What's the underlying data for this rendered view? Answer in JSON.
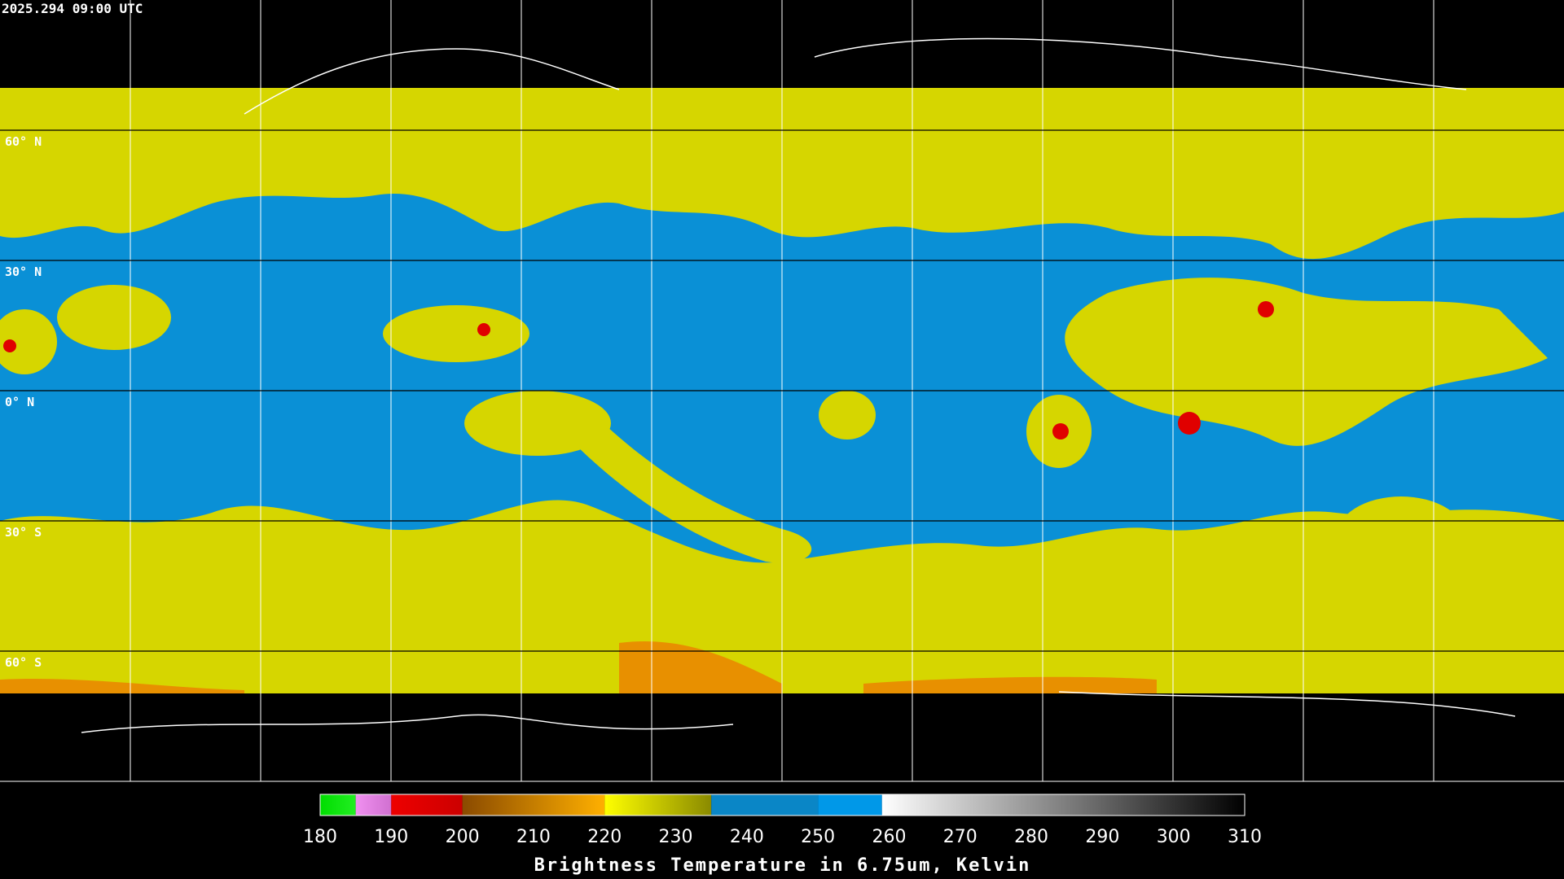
{
  "header": {
    "timestamp": "2025.294 09:00 UTC"
  },
  "latitudes": [
    {
      "value": 60,
      "label": "60° N"
    },
    {
      "value": 30,
      "label": "30° N"
    },
    {
      "value": 0,
      "label": "0° N"
    },
    {
      "value": -30,
      "label": "30° S"
    },
    {
      "value": -60,
      "label": "60° S"
    }
  ],
  "colorbar": {
    "title": "Brightness Temperature in 6.75um, Kelvin",
    "lim": [
      180,
      310
    ],
    "ticks": [
      180,
      190,
      200,
      210,
      220,
      230,
      240,
      250,
      260,
      270,
      280,
      290,
      300,
      310
    ],
    "segments": [
      {
        "from": 180,
        "to": 185,
        "color": "#00dd00",
        "color_end": "#22ee22"
      },
      {
        "from": 185,
        "to": 190,
        "color": "#f090f0",
        "color_end": "#d070d0"
      },
      {
        "from": 190,
        "to": 200,
        "color": "#ee0000",
        "color_end": "#cc0000"
      },
      {
        "from": 200,
        "to": 220,
        "color": "#8a4a00",
        "color_end": "#ffb000"
      },
      {
        "from": 220,
        "to": 235,
        "color": "#ffff00",
        "color_end": "#8a8a00"
      },
      {
        "from": 235,
        "to": 250,
        "color": "#0a86c6",
        "color_end": "#0a86c6"
      },
      {
        "from": 250,
        "to": 259,
        "color": "#0098e8",
        "color_end": "#0098e8"
      },
      {
        "from": 259,
        "to": 310,
        "color": "#ffffff",
        "color_end": "#000000"
      }
    ]
  }
}
